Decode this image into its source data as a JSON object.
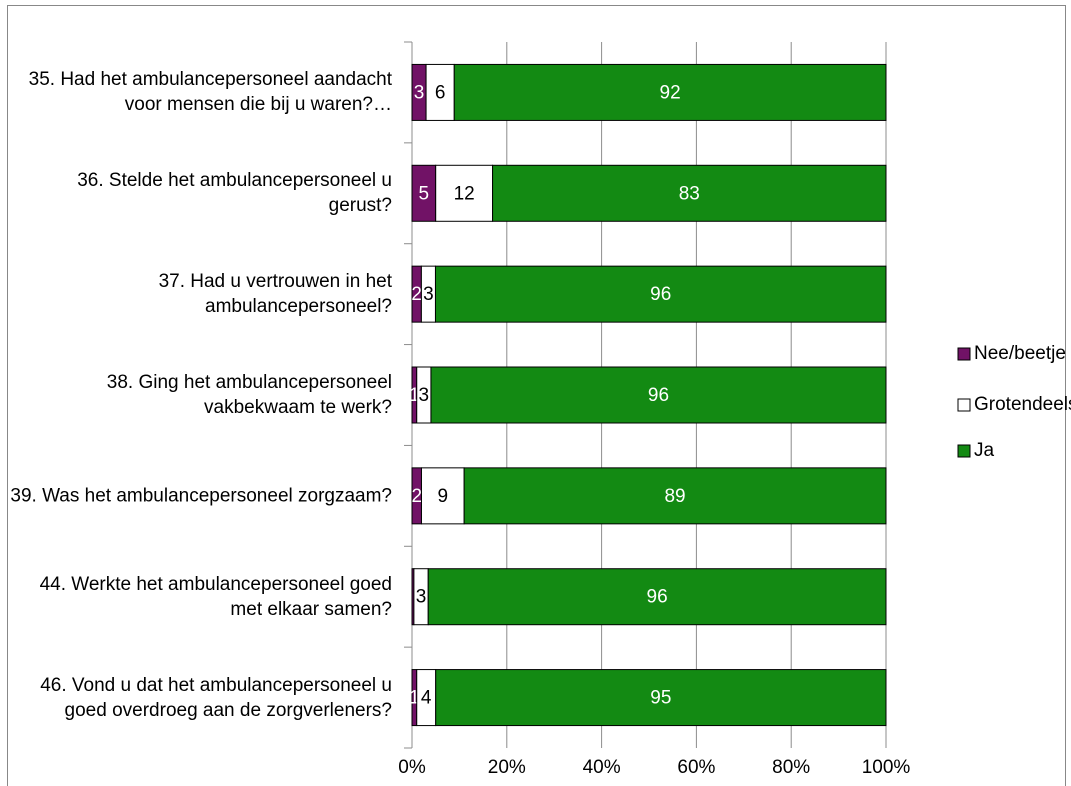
{
  "chart_data": {
    "type": "stacked_bar_100_horizontal",
    "categories": [
      "35. Had het ambulancepersoneel aandacht voor mensen die bij u waren?…",
      "36. Stelde het ambulancepersoneel u gerust?",
      "37. Had u vertrouwen in het ambulancepersoneel?",
      "38. Ging het ambulancepersoneel vakbekwaam te werk?",
      "39. Was het ambulancepersoneel zorgzaam?",
      "44. Werkte het ambulancepersoneel goed met elkaar samen?",
      "46. Vond u dat het ambulancepersoneel u goed overdroeg aan de zorgverleners?"
    ],
    "series": [
      {
        "name": "Nee/beetje",
        "color": "#711266",
        "values": [
          3,
          5,
          2,
          1,
          2,
          0.4,
          1
        ]
      },
      {
        "name": "Grotendeels",
        "color": "#ffffff",
        "values": [
          6,
          12,
          3,
          3,
          9,
          3,
          4
        ]
      },
      {
        "name": "Ja",
        "color": "#138a13",
        "values": [
          92,
          83,
          96,
          96,
          89,
          96,
          95
        ]
      }
    ],
    "xlim": [
      0,
      100
    ],
    "xticks": [
      {
        "value": 0,
        "label": "0%"
      },
      {
        "value": 20,
        "label": "20%"
      },
      {
        "value": 40,
        "label": "40%"
      },
      {
        "value": 60,
        "label": "60%"
      },
      {
        "value": 80,
        "label": "80%"
      },
      {
        "value": 100,
        "label": "100%"
      }
    ],
    "grid": true,
    "legend": "right"
  }
}
